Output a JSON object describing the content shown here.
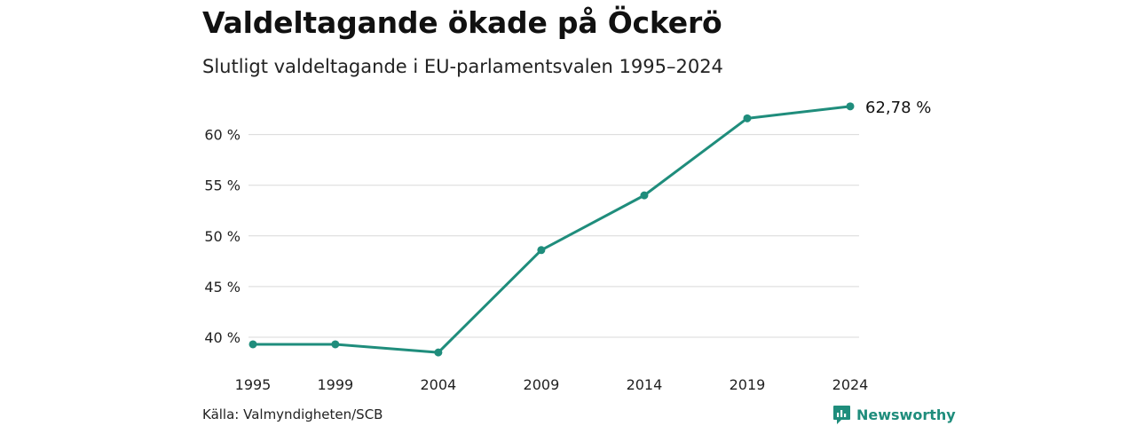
{
  "header": {
    "title": "Valdeltagande ökade på Öckerö",
    "subtitle": "Slutligt valdeltagande i EU-parlamentsvalen 1995–2024"
  },
  "footer": {
    "source": "Källa: Valmyndigheten/SCB",
    "brand": "Newsworthy"
  },
  "colors": {
    "line": "#1f8d7c",
    "grid": "#d9d9d9",
    "brand": "#1f8d7c"
  },
  "chart_data": {
    "type": "line",
    "title": "Valdeltagande ökade på Öckerö",
    "subtitle": "Slutligt valdeltagande i EU-parlamentsvalen 1995–2024",
    "x": [
      1995,
      1999,
      2004,
      2009,
      2014,
      2019,
      2024
    ],
    "series": [
      {
        "values": [
          39.3,
          39.3,
          38.5,
          48.6,
          54.0,
          61.6,
          62.78
        ]
      }
    ],
    "ylim": [
      38,
      63
    ],
    "yticks": [
      40,
      45,
      50,
      55,
      60
    ],
    "ytick_labels": [
      "40 %",
      "45 %",
      "50 %",
      "55 %",
      "60 %"
    ],
    "xtick_labels": [
      "1995",
      "1999",
      "2004",
      "2009",
      "2014",
      "2019",
      "2024"
    ],
    "end_label": "62,78 %",
    "grid": true,
    "legend": "none"
  }
}
